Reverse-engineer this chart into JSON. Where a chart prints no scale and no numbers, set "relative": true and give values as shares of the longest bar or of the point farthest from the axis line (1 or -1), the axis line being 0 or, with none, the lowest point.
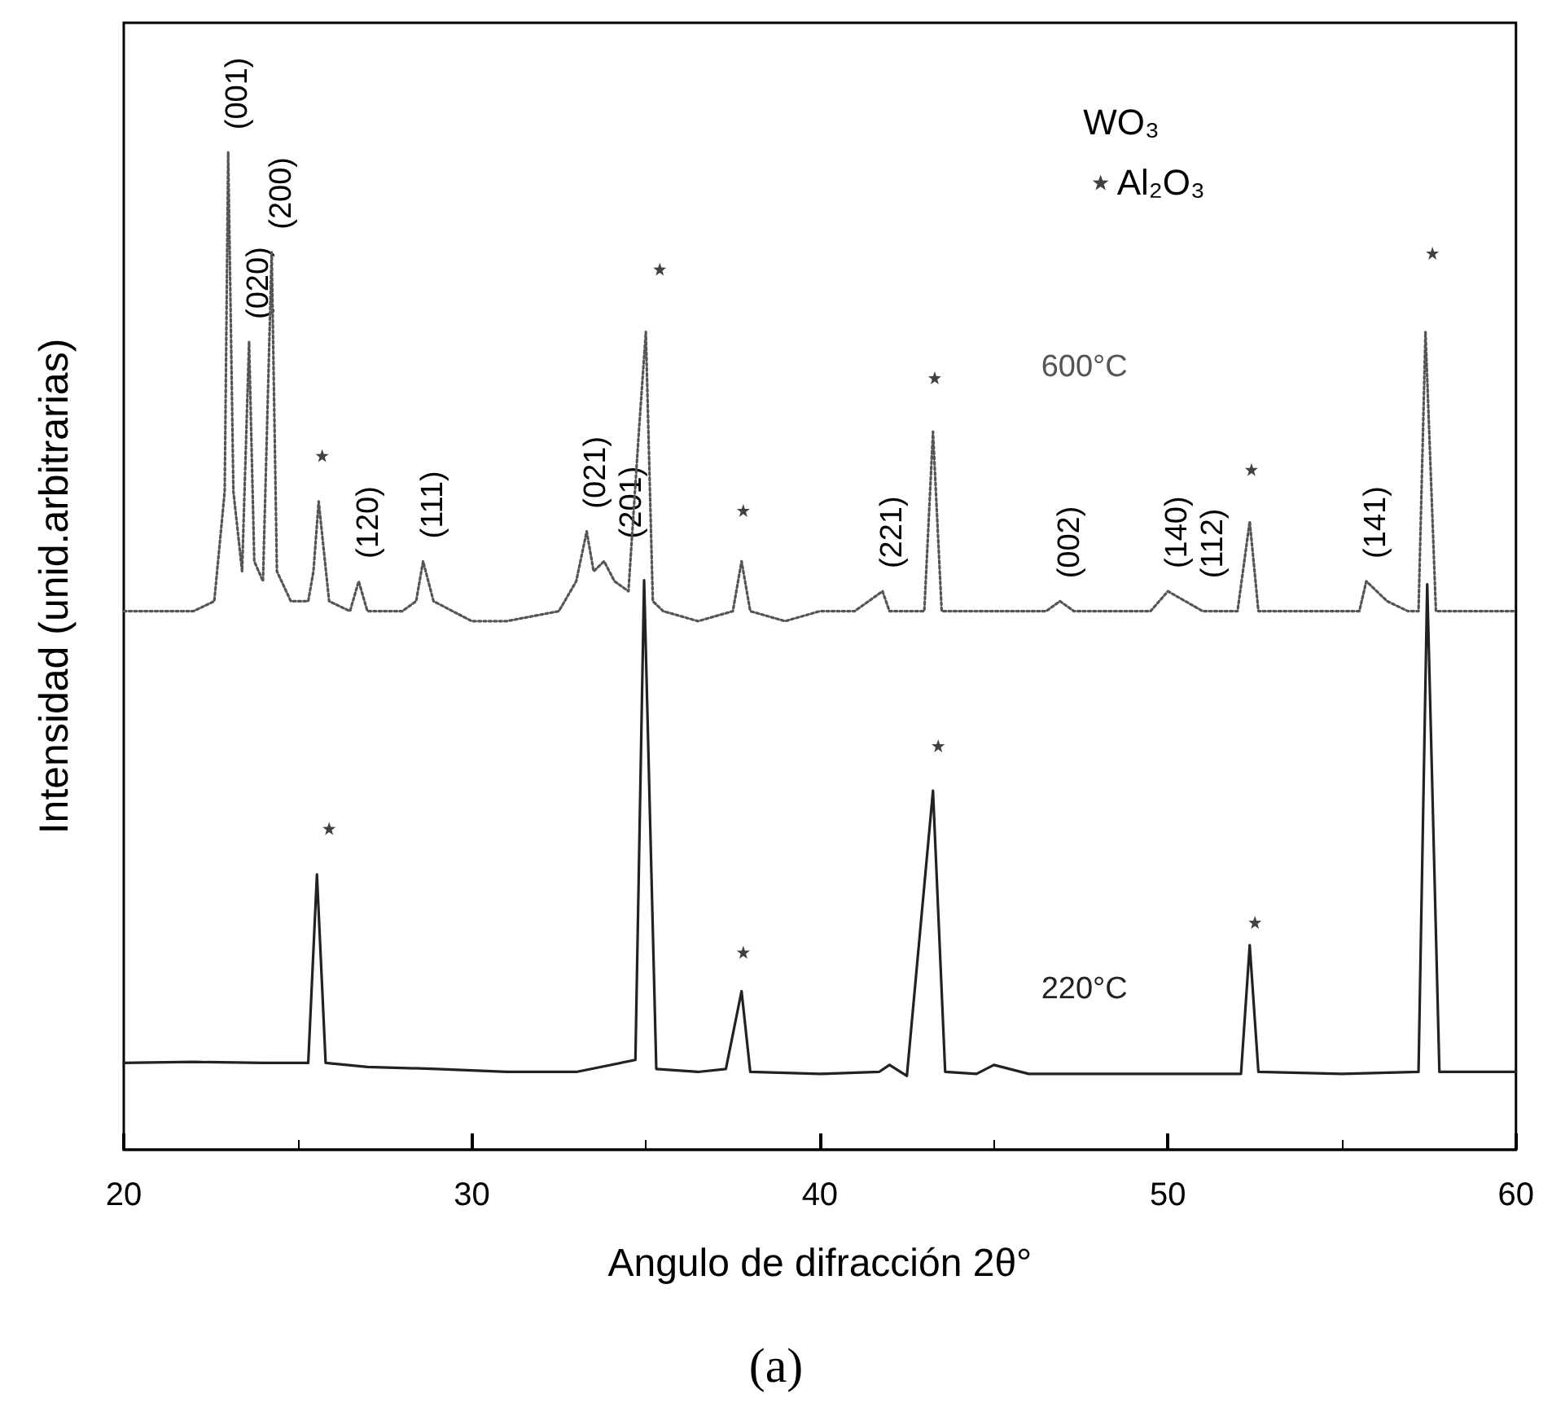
{
  "chart_data": {
    "type": "line",
    "relative": true,
    "xlabel": "Angulo de difracción 2θ°",
    "ylabel": "Intensidad (unid.arbitrarias)",
    "xlim": [
      20,
      60
    ],
    "xticks": [
      20,
      30,
      40,
      50,
      60
    ],
    "legend": "top right",
    "legend_title": "WO₃",
    "grid": false,
    "tick_labels": "x",
    "series": [
      {
        "name": "600°C",
        "color": "#555555",
        "line_style": "dotted",
        "x": [
          20,
          21,
          22,
          22.6,
          22.9,
          23.0,
          23.15,
          23.4,
          23.6,
          23.75,
          24.0,
          24.25,
          24.4,
          24.8,
          25.3,
          25.45,
          25.6,
          25.9,
          26.5,
          26.75,
          27.0,
          28.0,
          28.4,
          28.6,
          28.9,
          30,
          31,
          32.5,
          33.0,
          33.3,
          33.5,
          33.8,
          34.1,
          34.5,
          34.8,
          35.0,
          35.2,
          35.5,
          36.5,
          37.5,
          37.75,
          38.0,
          39,
          40,
          41,
          41.8,
          42.0,
          43.0,
          43.25,
          43.5,
          45,
          46.5,
          46.9,
          47.3,
          49.5,
          50.0,
          50.5,
          51.0,
          52.0,
          52.35,
          52.6,
          53.5,
          55.5,
          55.7,
          56.3,
          56.9,
          57.2,
          57.4,
          57.7,
          58.5,
          60
        ],
        "values": [
          0.54,
          0.54,
          0.54,
          0.55,
          0.66,
          1.0,
          0.66,
          0.58,
          0.81,
          0.59,
          0.57,
          0.9,
          0.58,
          0.55,
          0.55,
          0.58,
          0.65,
          0.55,
          0.54,
          0.57,
          0.54,
          0.54,
          0.55,
          0.59,
          0.55,
          0.53,
          0.53,
          0.54,
          0.57,
          0.62,
          0.58,
          0.59,
          0.57,
          0.56,
          0.72,
          0.82,
          0.55,
          0.54,
          0.53,
          0.54,
          0.59,
          0.54,
          0.53,
          0.54,
          0.54,
          0.56,
          0.54,
          0.54,
          0.72,
          0.54,
          0.54,
          0.54,
          0.55,
          0.54,
          0.54,
          0.56,
          0.55,
          0.54,
          0.54,
          0.63,
          0.54,
          0.54,
          0.54,
          0.57,
          0.55,
          0.54,
          0.54,
          0.82,
          0.54,
          0.54,
          0.54
        ]
      },
      {
        "name": "220°C",
        "color": "#222222",
        "line_style": "solid",
        "x": [
          20,
          22,
          24,
          25.3,
          25.55,
          25.8,
          27,
          29,
          31,
          33,
          34.7,
          34.95,
          35.3,
          36.5,
          37.3,
          37.75,
          38.0,
          40,
          41.7,
          42.0,
          42.5,
          43.25,
          43.6,
          44.5,
          45,
          46,
          50,
          52.1,
          52.35,
          52.6,
          55,
          57.2,
          57.45,
          57.8,
          60
        ],
        "values": [
          0.087,
          0.088,
          0.087,
          0.087,
          0.276,
          0.087,
          0.083,
          0.081,
          0.078,
          0.078,
          0.09,
          0.571,
          0.081,
          0.078,
          0.081,
          0.159,
          0.078,
          0.076,
          0.078,
          0.085,
          0.074,
          0.36,
          0.078,
          0.076,
          0.085,
          0.076,
          0.076,
          0.076,
          0.205,
          0.078,
          0.076,
          0.078,
          0.567,
          0.078,
          0.078
        ]
      },
      {
        "name": "Al₂O₃",
        "type": "scatter",
        "color": "#111111",
        "marker": "star",
        "x": [
          25.7,
          35.4,
          37.8,
          43.3,
          52.4,
          57.6,
          25.9,
          37.8,
          43.4,
          52.5
        ],
        "values": [
          0.696,
          0.883,
          0.641,
          0.774,
          0.682,
          0.899,
          0.322,
          0.198,
          0.405,
          0.228
        ]
      }
    ],
    "annotations": [
      {
        "text": "(001)",
        "x": 23.0,
        "y": 1.0
      },
      {
        "text": "(020)",
        "x": 23.6,
        "y": 0.81
      },
      {
        "text": "(200)",
        "x": 24.25,
        "y": 0.9
      },
      {
        "text": "(120)",
        "x": 26.75,
        "y": 0.57
      },
      {
        "text": "(111)",
        "x": 28.6,
        "y": 0.59
      },
      {
        "text": "(021)",
        "x": 33.3,
        "y": 0.62
      },
      {
        "text": "(201)",
        "x": 33.8,
        "y": 0.59
      },
      {
        "text": "(221)",
        "x": 41.8,
        "y": 0.56
      },
      {
        "text": "(002)",
        "x": 46.9,
        "y": 0.55
      },
      {
        "text": "(140)",
        "x": 50.0,
        "y": 0.56
      },
      {
        "text": "(112)",
        "x": 50.5,
        "y": 0.55
      },
      {
        "text": "(141)",
        "x": 55.7,
        "y": 0.57
      },
      "(a)"
    ]
  }
}
